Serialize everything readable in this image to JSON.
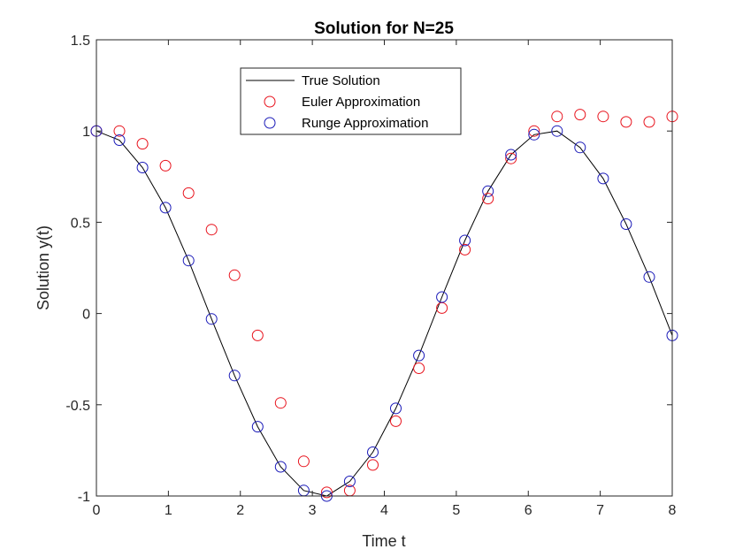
{
  "chart_data": {
    "type": "line",
    "title": "Solution for N=25",
    "xlabel": "Time t",
    "ylabel": "Solution y(t)",
    "xlim": [
      0,
      8
    ],
    "ylim": [
      -1,
      1.5
    ],
    "xticks": [
      0,
      1,
      2,
      3,
      4,
      5,
      6,
      7,
      8
    ],
    "xtick_labels": [
      "0",
      "1",
      "2",
      "3",
      "4",
      "5",
      "6",
      "7",
      "8"
    ],
    "yticks": [
      -1,
      -0.5,
      0,
      0.5,
      1,
      1.5
    ],
    "ytick_labels": [
      "-1",
      "-0.5",
      "0",
      "0.5",
      "1",
      "1.5"
    ],
    "grid": false,
    "legend_position": "top-center",
    "series": [
      {
        "name": "True Solution",
        "style": "line",
        "color": "#000000",
        "x": [
          0,
          0.32,
          0.64,
          0.96,
          1.28,
          1.6,
          1.92,
          2.24,
          2.56,
          2.88,
          3.2,
          3.52,
          3.84,
          4.16,
          4.48,
          4.8,
          5.12,
          5.44,
          5.76,
          6.08,
          6.4,
          6.72,
          7.04,
          7.36,
          7.68,
          8.0
        ],
        "y": [
          1.0,
          0.95,
          0.8,
          0.58,
          0.29,
          -0.03,
          -0.34,
          -0.62,
          -0.84,
          -0.97,
          -1.0,
          -0.92,
          -0.76,
          -0.52,
          -0.23,
          0.09,
          0.4,
          0.67,
          0.87,
          0.98,
          1.0,
          0.91,
          0.74,
          0.49,
          0.2,
          -0.12
        ]
      },
      {
        "name": "Euler Approximation",
        "style": "marker",
        "color": "#e8121c",
        "x": [
          0,
          0.32,
          0.64,
          0.96,
          1.28,
          1.6,
          1.92,
          2.24,
          2.56,
          2.88,
          3.2,
          3.52,
          3.84,
          4.16,
          4.48,
          4.8,
          5.12,
          5.44,
          5.76,
          6.08,
          6.4,
          6.72,
          7.04,
          7.36,
          7.68,
          8.0
        ],
        "y": [
          1.0,
          1.0,
          0.93,
          0.81,
          0.66,
          0.46,
          0.21,
          -0.12,
          -0.49,
          -0.81,
          -0.98,
          -0.97,
          -0.83,
          -0.59,
          -0.3,
          0.03,
          0.35,
          0.63,
          0.85,
          1.0,
          1.08,
          1.09,
          1.08,
          1.05,
          1.05,
          1.08
        ]
      },
      {
        "name": "Runge Approximation",
        "style": "marker",
        "color": "#1a1ab8",
        "x": [
          0,
          0.32,
          0.64,
          0.96,
          1.28,
          1.6,
          1.92,
          2.24,
          2.56,
          2.88,
          3.2,
          3.52,
          3.84,
          4.16,
          4.48,
          4.8,
          5.12,
          5.44,
          5.76,
          6.08,
          6.4,
          6.72,
          7.04,
          7.36,
          7.68,
          8.0
        ],
        "y": [
          1.0,
          0.95,
          0.8,
          0.58,
          0.29,
          -0.03,
          -0.34,
          -0.62,
          -0.84,
          -0.97,
          -1.0,
          -0.92,
          -0.76,
          -0.52,
          -0.23,
          0.09,
          0.4,
          0.67,
          0.87,
          0.98,
          1.0,
          0.91,
          0.74,
          0.49,
          0.2,
          -0.12
        ]
      }
    ]
  }
}
